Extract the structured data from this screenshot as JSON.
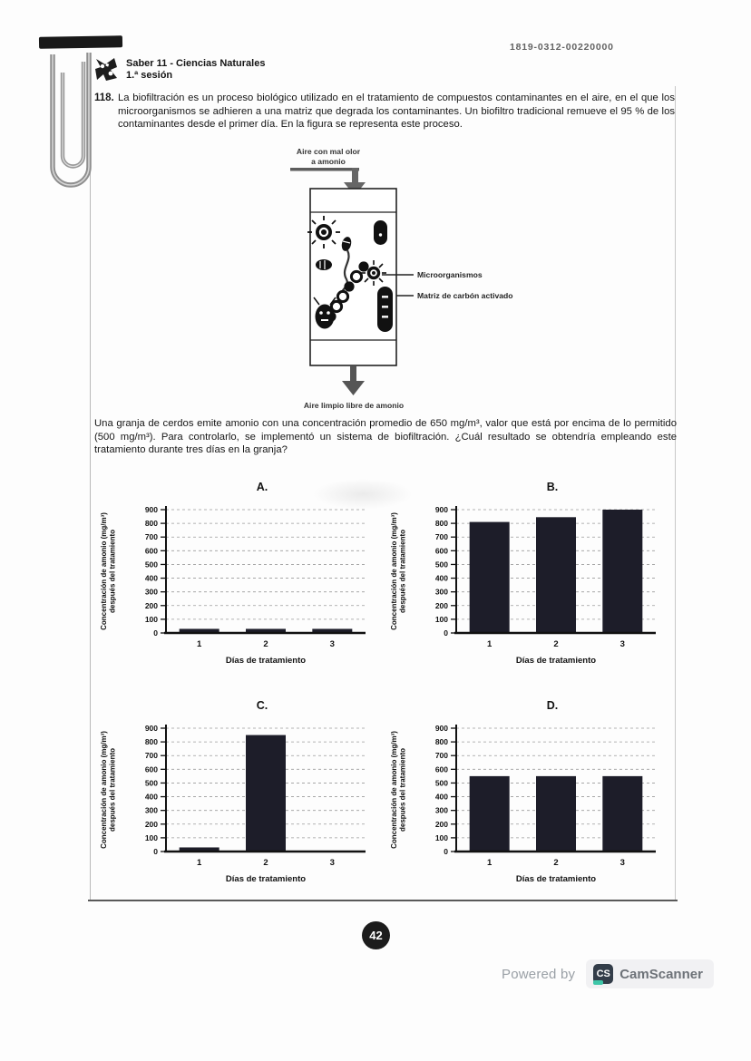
{
  "page": {
    "doc_id": "1819-0312-00220000",
    "page_number": "42",
    "footer_powered_by": "Powered by",
    "footer_cs": "CS",
    "footer_camscanner": "CamScanner"
  },
  "header": {
    "title": "Saber 11 - Ciencias Naturales",
    "session": "1.ª sesión"
  },
  "question": {
    "number": "118.",
    "intro": "La biofiltración es un proceso biológico utilizado en el tratamiento de compuestos contaminantes en el aire, en el que los microorganismos se adhieren a una matriz que degrada los contaminantes. Un biofiltro tradicional remueve el 95 % de los contaminantes desde el primer día. En la figura se representa este proceso.",
    "prompt": "Una granja de cerdos emite amonio con una concentración promedio de 650 mg/m³, valor que está por encima de lo permitido (500 mg/m³). Para controlarlo, se implementó un sistema de biofiltración. ¿Cuál resultado se obtendría empleando este tratamiento durante tres días en la granja?"
  },
  "diagram": {
    "top_label_line1": "Aire con mal olor",
    "top_label_line2": "a amonio",
    "label_microorganisms": "Microorganismos",
    "label_matrix": "Matriz de carbón activado",
    "bottom_label": "Aire limpio libre de amonio"
  },
  "chart_data": [
    {
      "option": "A.",
      "type": "bar",
      "categories": [
        "1",
        "2",
        "3"
      ],
      "values": [
        30,
        30,
        30
      ],
      "xlabel": "Días de tratamiento",
      "ylabel_lines": [
        "Concentración de amonio (mg/m³)",
        "después del tratamiento"
      ],
      "ylim": [
        0,
        900
      ],
      "ytick_step": 100,
      "grid": "dashed-horizontal",
      "legend": "none",
      "bar_color": "#1d1d29"
    },
    {
      "option": "B.",
      "type": "bar",
      "categories": [
        "1",
        "2",
        "3"
      ],
      "values": [
        810,
        845,
        900
      ],
      "xlabel": "Días de tratamiento",
      "ylabel_lines": [
        "Concentración de amonio (mg/m³)",
        "después del tratamiento"
      ],
      "ylim": [
        0,
        900
      ],
      "ytick_step": 100,
      "grid": "dashed-horizontal",
      "legend": "none",
      "bar_color": "#1d1d29"
    },
    {
      "option": "C.",
      "type": "bar",
      "categories": [
        "1",
        "2",
        "3"
      ],
      "values": [
        30,
        850,
        0
      ],
      "xlabel": "Días de tratamiento",
      "ylabel_lines": [
        "Concentración de amonio (mg/m³)",
        "después del tratamiento"
      ],
      "ylim": [
        0,
        900
      ],
      "ytick_step": 100,
      "grid": "dashed-horizontal",
      "legend": "none",
      "bar_color": "#1d1d29"
    },
    {
      "option": "D.",
      "type": "bar",
      "categories": [
        "1",
        "2",
        "3"
      ],
      "values": [
        550,
        550,
        550
      ],
      "xlabel": "Días de tratamiento",
      "ylabel_lines": [
        "Concentración de amonio (mg/m³)",
        "después del tratamiento"
      ],
      "ylim": [
        0,
        900
      ],
      "ytick_step": 100,
      "grid": "dashed-horizontal",
      "legend": "none",
      "bar_color": "#1d1d29"
    }
  ]
}
